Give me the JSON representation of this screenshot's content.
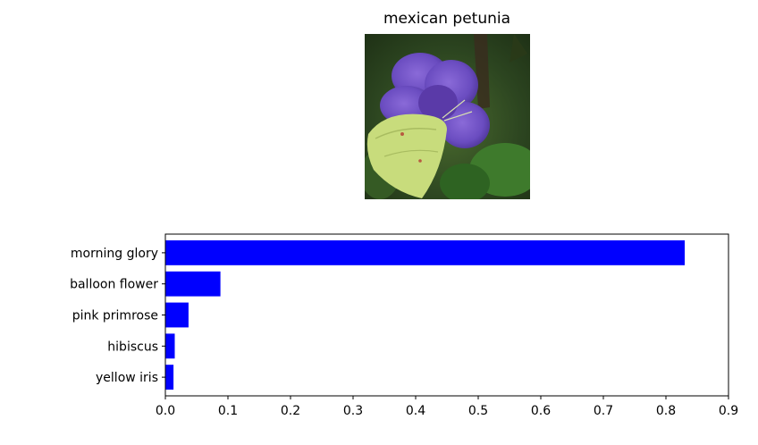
{
  "image_panel": {
    "title": "mexican petunia",
    "photo_subject": "purple flower with pale yellow-green butterfly"
  },
  "chart_data": {
    "type": "bar",
    "orientation": "horizontal",
    "categories": [
      "morning glory",
      "balloon flower",
      "pink primrose",
      "hibiscus",
      "yellow iris"
    ],
    "values": [
      0.83,
      0.088,
      0.037,
      0.015,
      0.013
    ],
    "title": "",
    "xlabel": "",
    "ylabel": "",
    "xlim": [
      0,
      0.9
    ],
    "xticks": [
      "0.0",
      "0.1",
      "0.2",
      "0.3",
      "0.4",
      "0.5",
      "0.6",
      "0.7",
      "0.8",
      "0.9"
    ],
    "bar_color": "#0000ff",
    "grid": false
  }
}
